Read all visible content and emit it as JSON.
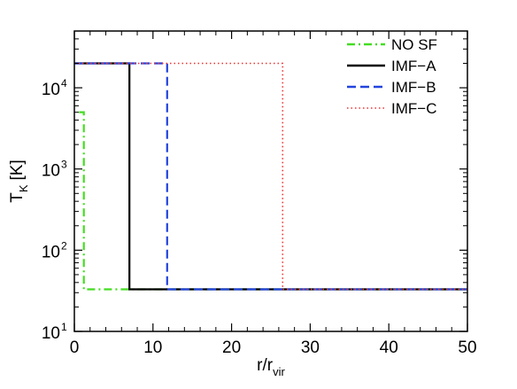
{
  "chart_data": {
    "type": "line",
    "xlabel": "r/r",
    "xlabel_sub": "vir",
    "ylabel": "T",
    "ylabel_sub": "K",
    "ylabel_unit": "[K]",
    "xlim": [
      0,
      50
    ],
    "ylim": [
      10,
      50000
    ],
    "yscale": "log",
    "x_ticks": [
      0,
      10,
      20,
      30,
      40,
      50
    ],
    "x_tick_labels": [
      "0",
      "10",
      "20",
      "30",
      "40",
      "50"
    ],
    "y_ticks": [
      10,
      100,
      1000,
      10000
    ],
    "y_tick_labels": [
      {
        "base": "10",
        "exp": "1"
      },
      {
        "base": "10",
        "exp": "2"
      },
      {
        "base": "10",
        "exp": "3"
      },
      {
        "base": "10",
        "exp": "4"
      }
    ],
    "legend_position": "top-right",
    "grid": false,
    "series": [
      {
        "name": "NO SF",
        "color": "#44dd22",
        "dash": "dashdot",
        "x": [
          0.6,
          0.6,
          1.2,
          1.2,
          50
        ],
        "y": [
          5000,
          5000,
          5000,
          33,
          33
        ]
      },
      {
        "name": "IMF−A",
        "color": "#000000",
        "dash": "solid",
        "x": [
          0,
          7.0,
          7.0,
          50
        ],
        "y": [
          20000,
          20000,
          33,
          33
        ]
      },
      {
        "name": "IMF−B",
        "color": "#2244dd",
        "dash": "dashed",
        "x": [
          0,
          11.8,
          11.8,
          50
        ],
        "y": [
          20000,
          20000,
          33,
          33
        ]
      },
      {
        "name": "IMF−C",
        "color": "#ee3333",
        "dash": "dotted",
        "x": [
          0,
          26.5,
          26.5,
          50
        ],
        "y": [
          20000,
          20000,
          33,
          33
        ]
      }
    ]
  }
}
